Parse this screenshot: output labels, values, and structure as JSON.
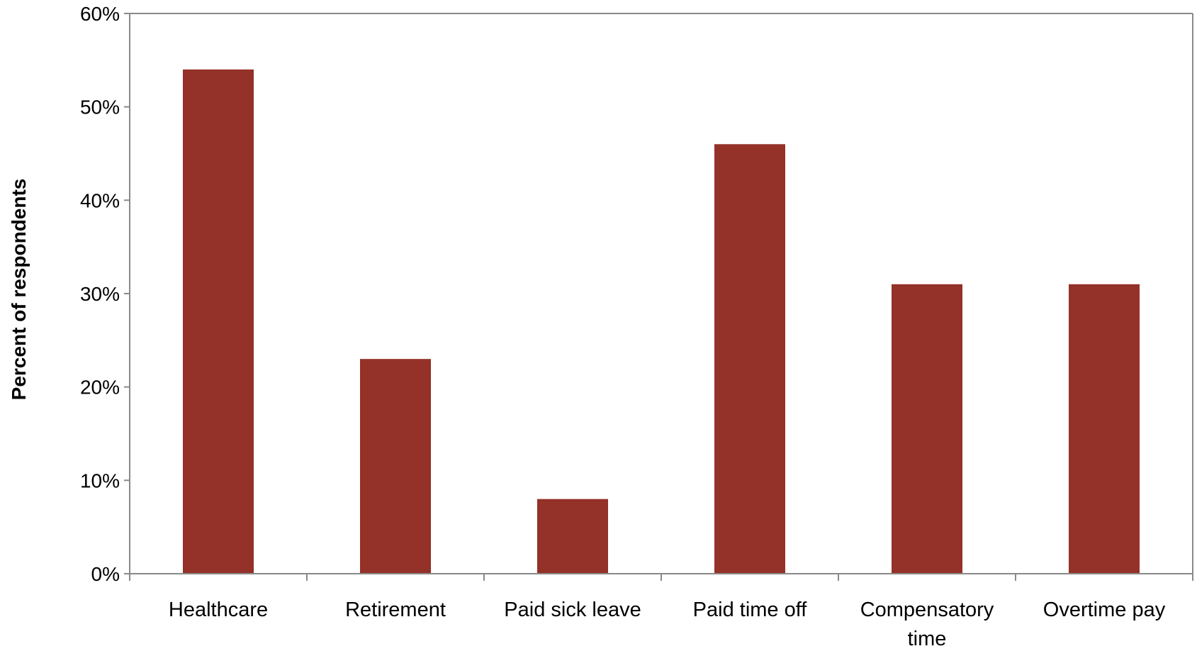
{
  "chart_data": {
    "type": "bar",
    "title": "",
    "xlabel": "",
    "ylabel": "Percent of respondents",
    "categories": [
      [
        "Healthcare"
      ],
      [
        "Retirement"
      ],
      [
        "Paid sick leave"
      ],
      [
        "Paid time off"
      ],
      [
        "Compensatory",
        "time"
      ],
      [
        "Overtime pay"
      ]
    ],
    "values": [
      54,
      23,
      8,
      46,
      31,
      31
    ],
    "ylim": [
      0,
      60
    ],
    "yticks": [
      0,
      10,
      20,
      30,
      40,
      50,
      60
    ],
    "ytick_labels": [
      "0%",
      "10%",
      "20%",
      "30%",
      "40%",
      "50%",
      "60%"
    ],
    "grid": false,
    "legend": "none",
    "bar_color": "#943128",
    "axis_color": "#898989"
  }
}
